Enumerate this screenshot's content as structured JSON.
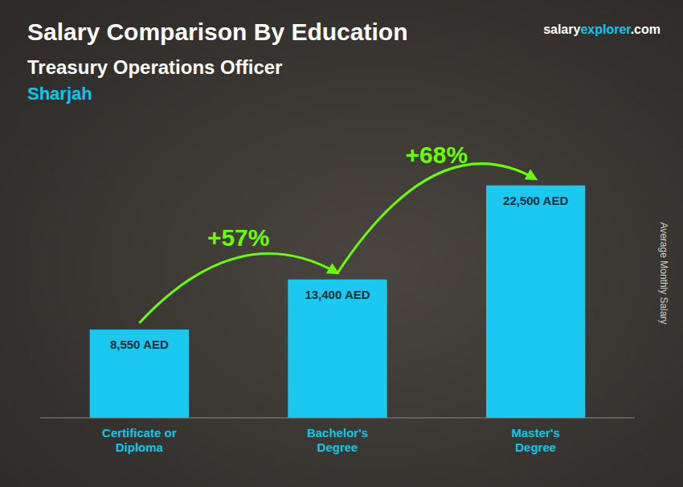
{
  "chart_data": {
    "type": "bar",
    "title": "Salary Comparison By Education",
    "subtitle": "Treasury Operations Officer",
    "location": "Sharjah",
    "watermark": [
      "salary",
      "explorer",
      ".com"
    ],
    "ylabel": "Average Monthly Salary",
    "categories": [
      "Certificate or\nDiploma",
      "Bachelor's\nDegree",
      "Master's\nDegree"
    ],
    "values": [
      8550,
      13400,
      22500
    ],
    "value_labels": [
      "8,550 AED",
      "13,400 AED",
      "22,500 AED"
    ],
    "data_labels": true,
    "annotations": [
      "+57%",
      "+68%"
    ],
    "color": "#1bc8f0",
    "ylim": [
      0,
      28000
    ],
    "tick_labels": "x",
    "grid": false
  }
}
